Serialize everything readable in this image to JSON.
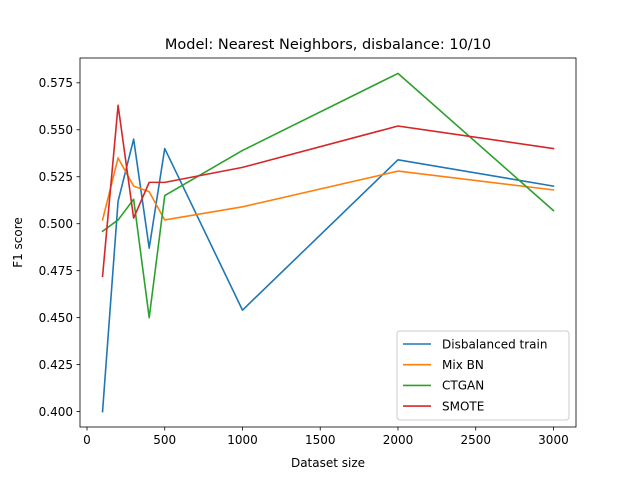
{
  "chart_data": {
    "type": "line",
    "title": "Model: Nearest Neighbors, disbalance: 10/10",
    "xlabel": "Dataset size",
    "ylabel": "F1 score",
    "xlim": [
      -45,
      3145
    ],
    "ylim": [
      0.3918,
      0.5882
    ],
    "xticks": [
      0,
      500,
      1000,
      1500,
      2000,
      2500,
      3000
    ],
    "yticks": [
      0.4,
      0.425,
      0.45,
      0.475,
      0.5,
      0.525,
      0.55,
      0.575
    ],
    "xtick_labels": [
      "0",
      "500",
      "1000",
      "1500",
      "2000",
      "2500",
      "3000"
    ],
    "ytick_labels": [
      "0.400",
      "0.425",
      "0.450",
      "0.475",
      "0.500",
      "0.525",
      "0.550",
      "0.575"
    ],
    "x": [
      100,
      200,
      300,
      400,
      500,
      1000,
      2000,
      3000
    ],
    "grid": false,
    "legend_position": "lower-right",
    "series": [
      {
        "name": "Disbalanced train",
        "color": "#1f77b4",
        "values": [
          0.4,
          0.512,
          0.545,
          0.487,
          0.54,
          0.454,
          0.534,
          0.52
        ]
      },
      {
        "name": "Mix BN",
        "color": "#ff7f0e",
        "values": [
          0.502,
          0.535,
          0.52,
          0.517,
          0.502,
          0.509,
          0.528,
          0.518
        ]
      },
      {
        "name": "CTGAN",
        "color": "#2ca02c",
        "values": [
          0.496,
          0.502,
          0.513,
          0.45,
          0.515,
          0.539,
          0.58,
          0.507
        ]
      },
      {
        "name": "SMOTE",
        "color": "#d62728",
        "values": [
          0.472,
          0.563,
          0.503,
          0.522,
          0.522,
          0.53,
          0.552,
          0.54
        ]
      }
    ]
  }
}
